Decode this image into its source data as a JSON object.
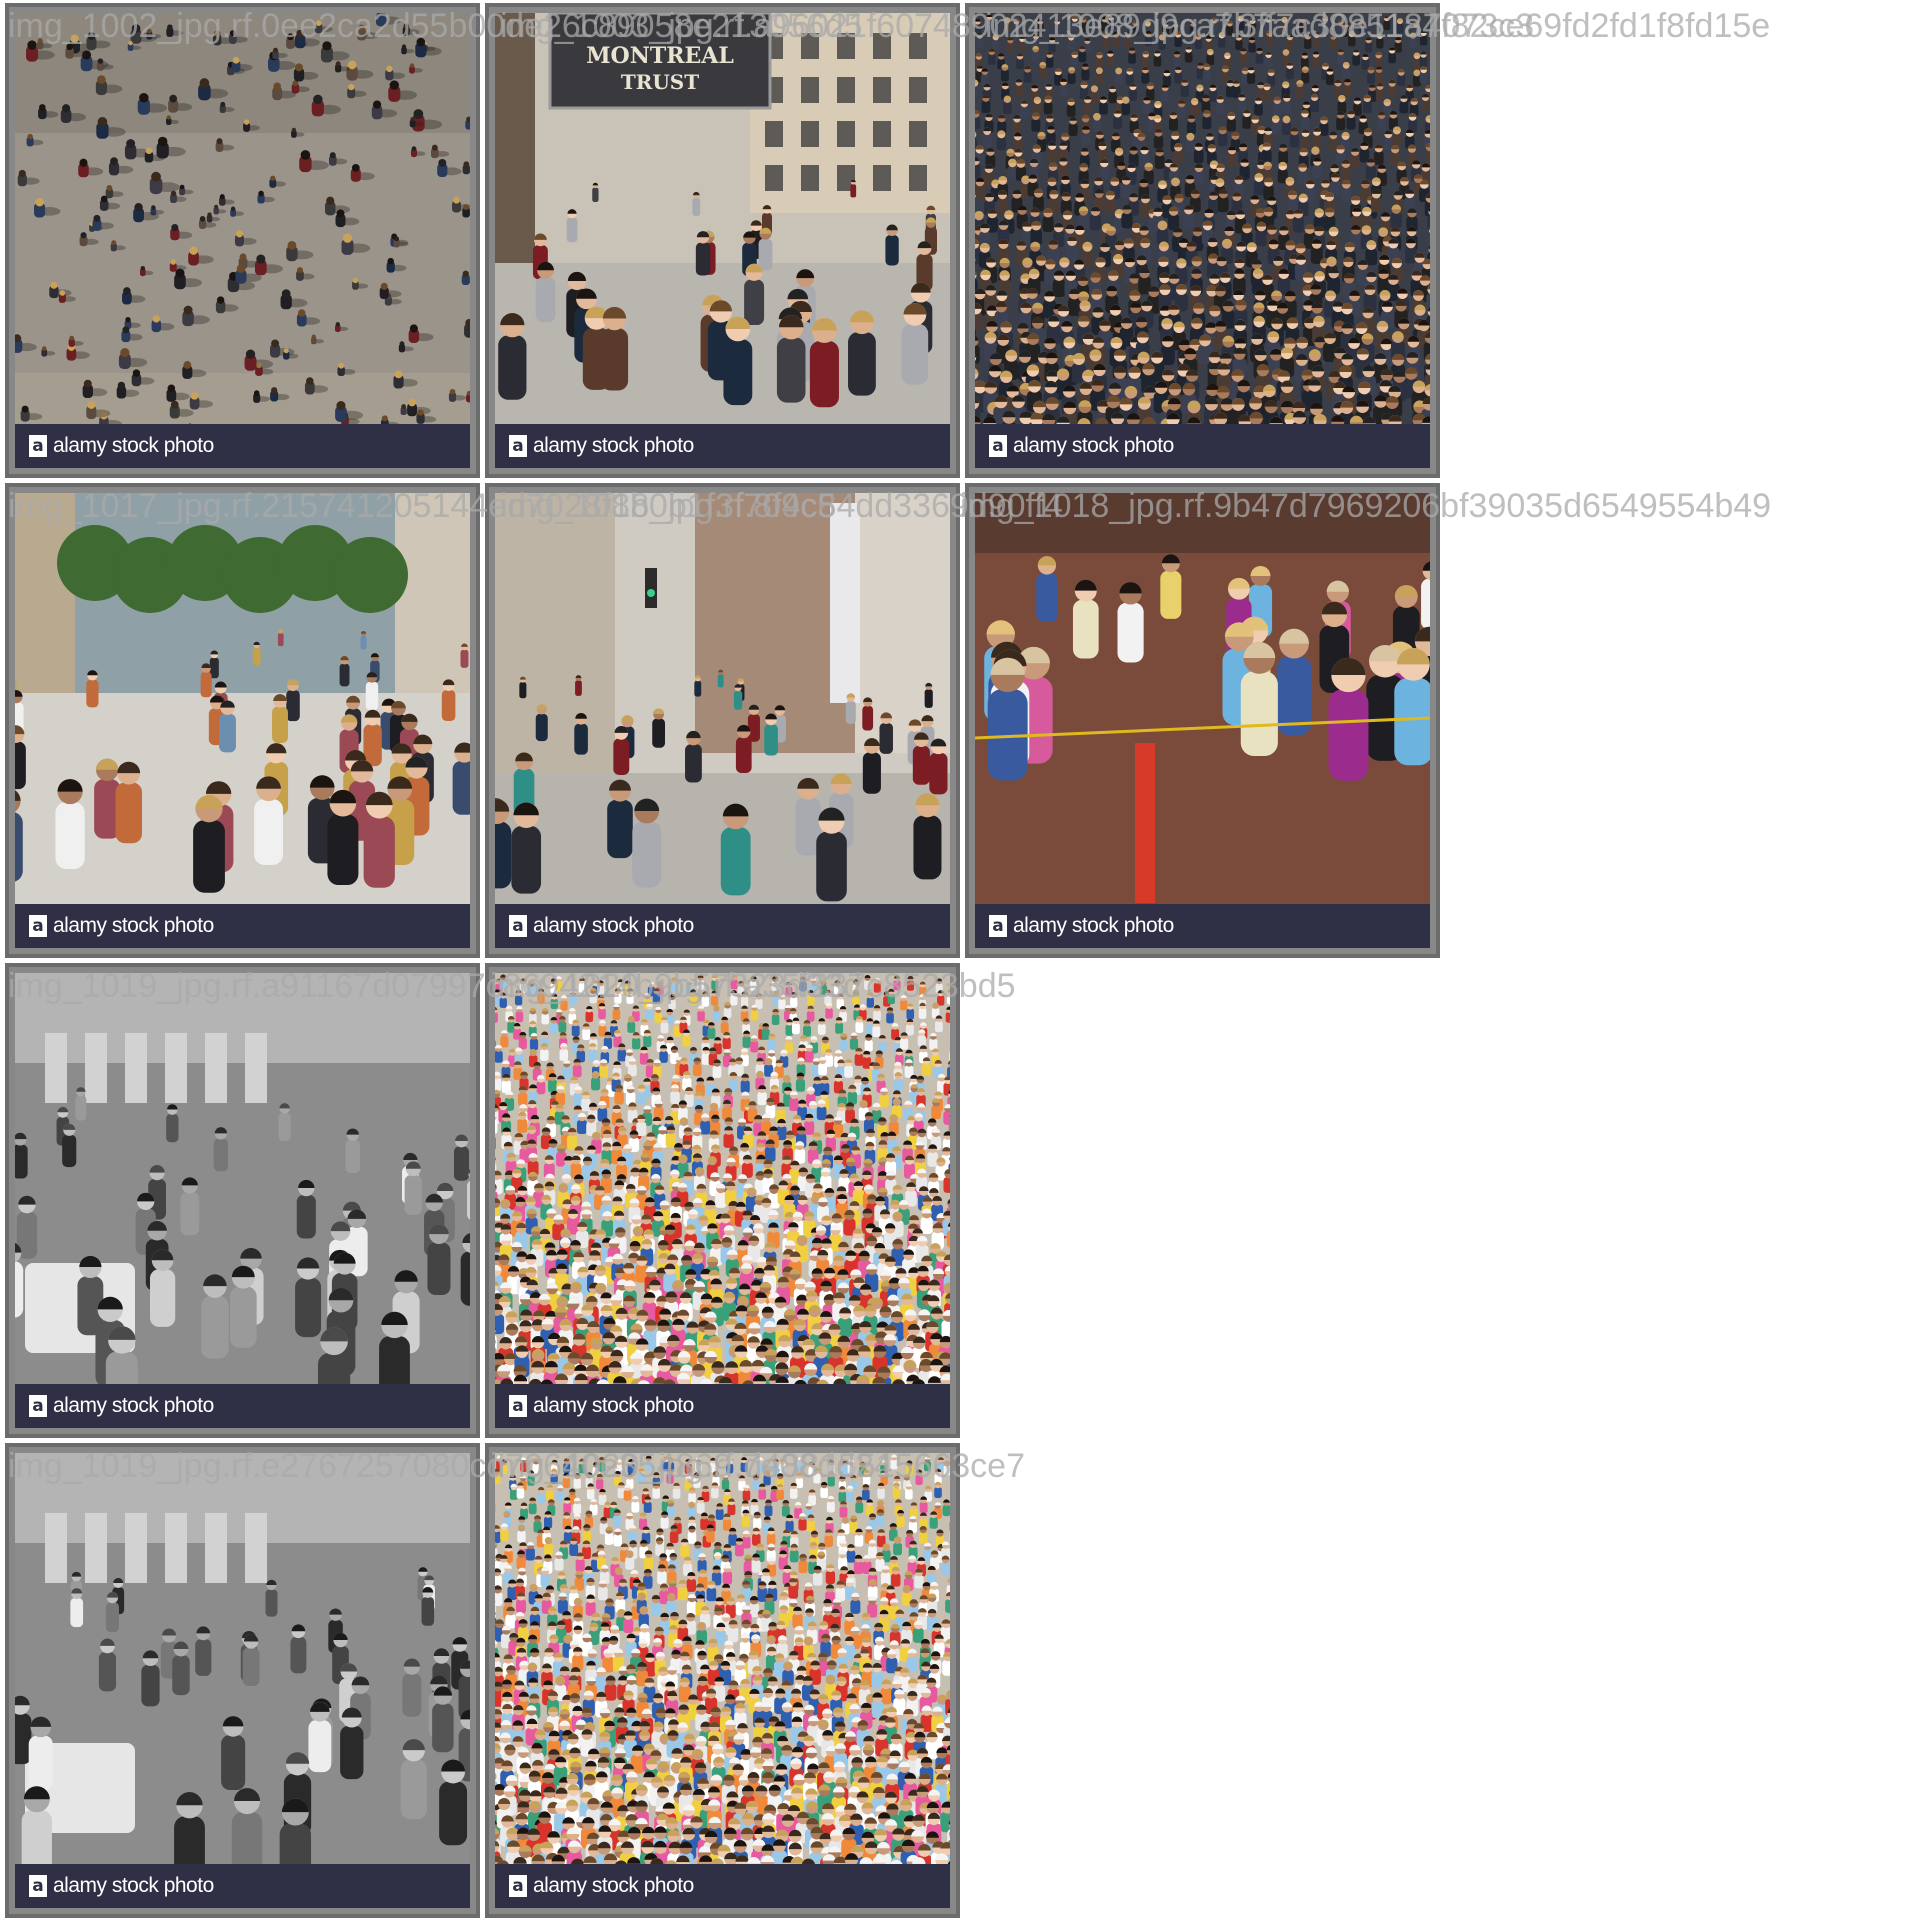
{
  "captions": [
    "img_1002_jpg.rf.0ee2ca2d55b00de26c89058e213056d5",
    "img_1003_jpg.rf.a96021f60748902413e89d9ca7b7aad885187073c3",
    "img_1008_jpg.rf.3ff7c30e11a4f82ce69fd2fd1f8fd15e",
    "img_1017_jpg.rf.215741205144ed7028f8b0b1f3f709c5",
    "img_1018_jpg.rf.8f4c84dd3369d90ff4",
    "img_1018_jpg.rf.9b47d7969206bf39035d6549554b49",
    "img_1019_jpg.rf.a91167d07997c8694214b9b57323d33d",
    "img_1020_jpg.rf.a35f237c8523bd5",
    "img_1019_jpg.rf.e2767257080cd70640e354869 7e08dd24",
    "img_1020_jpg.rf.d48815515663ce7"
  ],
  "tiles": [
    {
      "id": 1,
      "scene": "overhead-crowd-plaza",
      "watermark": "alamy stock photo"
    },
    {
      "id": 2,
      "scene": "street-pedestrians-sign",
      "sign_line1": "MONTREAL",
      "sign_line2": "TRUST",
      "watermark": "alamy stock photo"
    },
    {
      "id": 3,
      "scene": "dense-crowd-heads",
      "watermark": "alamy stock photo"
    },
    {
      "id": 4,
      "scene": "shopping-street-walkers",
      "watermark": "alamy stock photo"
    },
    {
      "id": 5,
      "scene": "city-avenue-pedestrians",
      "watermark": "alamy stock photo"
    },
    {
      "id": 6,
      "scene": "spectators-at-barrier",
      "watermark": "alamy stock photo"
    },
    {
      "id": 7,
      "scene": "grayscale-seated-audience",
      "watermark": "alamy stock photo"
    },
    {
      "id": 8,
      "scene": "colorful-stadium-crowd",
      "watermark": "alamy stock photo"
    },
    {
      "id": 9,
      "scene": "grayscale-seated-audience",
      "watermark": "alamy stock photo"
    },
    {
      "id": 10,
      "scene": "colorful-stadium-crowd",
      "watermark": "alamy stock photo"
    }
  ],
  "colors": {
    "watermark_bar": "#2f3045",
    "tile_border": "#6c6c6c",
    "caption": "#aaaaaa"
  }
}
